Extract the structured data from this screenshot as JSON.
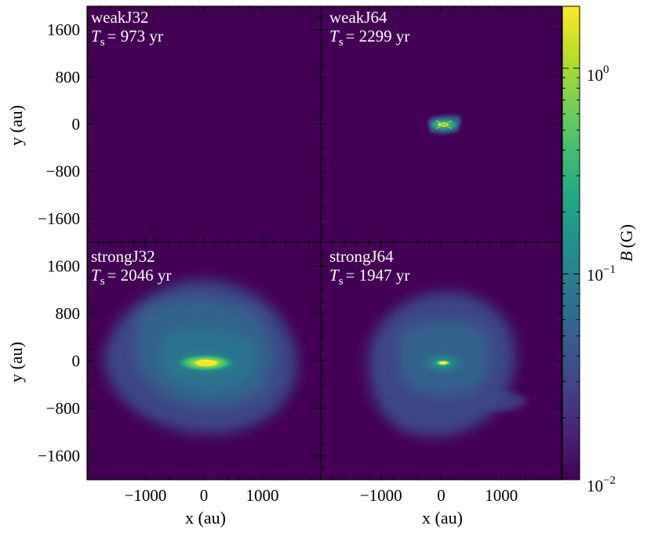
{
  "chart_data": {
    "type": "heatmap",
    "colorbar": {
      "label_symbol": "B",
      "label_unit": "(G)",
      "scale": "log",
      "range": [
        0.01,
        2.0
      ],
      "colormap": "viridis",
      "tick_base": "10",
      "tick_exponents": [
        "0",
        "−1",
        "−2"
      ],
      "tick_values": [
        1,
        0.1,
        0.01
      ]
    },
    "x_axis": {
      "label": "x (au)",
      "range": [
        -2000,
        2000
      ],
      "ticks": [
        -1000,
        0,
        1000
      ],
      "tick_labels": [
        "−1000",
        "0",
        "1000"
      ]
    },
    "y_axis": {
      "label": "y (au)",
      "range": [
        -2000,
        2000
      ],
      "ticks": [
        1600,
        800,
        0,
        -800,
        -1600
      ],
      "tick_labels": [
        "1600",
        "800",
        "0",
        "−800",
        "−1600"
      ]
    },
    "panels": [
      {
        "name": "weakJ32",
        "ts_symbol": "T",
        "ts_sub": "s",
        "ts_value": "= 973 yr",
        "structure": "none"
      },
      {
        "name": "weakJ64",
        "ts_symbol": "T",
        "ts_sub": "s",
        "ts_value": "= 2299 yr",
        "structure": "compact central disk"
      },
      {
        "name": "strongJ32",
        "ts_symbol": "T",
        "ts_sub": "s",
        "ts_value": "= 2046 yr",
        "structure": "extended envelope with bright central disk"
      },
      {
        "name": "strongJ64",
        "ts_symbol": "T",
        "ts_sub": "s",
        "ts_value": "= 1947 yr",
        "structure": "extended envelope with small central disk"
      }
    ]
  }
}
